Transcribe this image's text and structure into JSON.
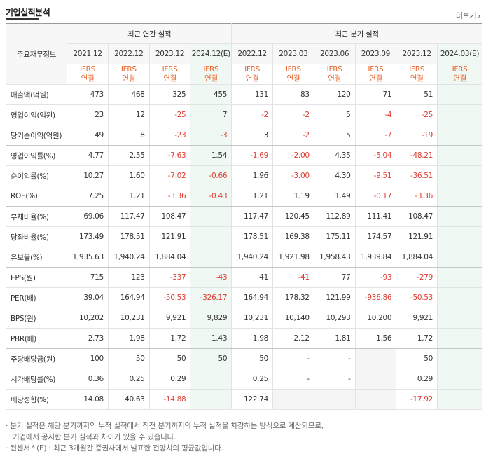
{
  "header": {
    "title": "기업실적분석",
    "more_label": "더보기"
  },
  "table": {
    "row_header_label": "주요재무정보",
    "annual_group": "최근 연간 실적",
    "quarter_group": "최근 분기 실적",
    "annual_dates": [
      "2021.12",
      "2022.12",
      "2023.12",
      "2024.12(E)"
    ],
    "quarter_dates": [
      "2022.12",
      "2023.03",
      "2023.06",
      "2023.09",
      "2023.12",
      "2024.03(E)"
    ],
    "ifrs": "IFRS",
    "basis": "연결",
    "rows": [
      {
        "label": "매출액(억원)",
        "values": [
          "473",
          "468",
          "325",
          "455",
          "131",
          "83",
          "120",
          "71",
          "51",
          ""
        ]
      },
      {
        "label": "영업이익(억원)",
        "values": [
          "23",
          "12",
          "-25",
          "7",
          "-2",
          "-2",
          "5",
          "-4",
          "-25",
          ""
        ]
      },
      {
        "label": "당기순이익(억원)",
        "values": [
          "49",
          "8",
          "-23",
          "-3",
          "3",
          "-2",
          "5",
          "-7",
          "-19",
          ""
        ]
      },
      {
        "label": "영업이익률(%)",
        "values": [
          "4.77",
          "2.55",
          "-7.63",
          "1.54",
          "-1.69",
          "-2.00",
          "4.35",
          "-5.04",
          "-48.21",
          ""
        ]
      },
      {
        "label": "순이익률(%)",
        "values": [
          "10.27",
          "1.60",
          "-7.02",
          "-0.66",
          "1.96",
          "-3.00",
          "4.30",
          "-9.51",
          "-36.51",
          ""
        ]
      },
      {
        "label": "ROE(%)",
        "values": [
          "7.25",
          "1.21",
          "-3.36",
          "-0.43",
          "1.21",
          "1.19",
          "1.49",
          "-0.17",
          "-3.36",
          ""
        ]
      },
      {
        "label": "부채비율(%)",
        "values": [
          "69.06",
          "117.47",
          "108.47",
          "",
          "117.47",
          "120.45",
          "112.89",
          "111.41",
          "108.47",
          ""
        ]
      },
      {
        "label": "당좌비율(%)",
        "values": [
          "173.49",
          "178.51",
          "121.91",
          "",
          "178.51",
          "169.38",
          "175.11",
          "174.57",
          "121.91",
          ""
        ]
      },
      {
        "label": "유보율(%)",
        "values": [
          "1,935.63",
          "1,940.24",
          "1,884.04",
          "",
          "1,940.24",
          "1,921.98",
          "1,958.43",
          "1,939.84",
          "1,884.04",
          ""
        ]
      },
      {
        "label": "EPS(원)",
        "values": [
          "715",
          "123",
          "-337",
          "-43",
          "41",
          "-41",
          "77",
          "-93",
          "-279",
          ""
        ]
      },
      {
        "label": "PER(배)",
        "values": [
          "39.04",
          "164.94",
          "-50.53",
          "-326.17",
          "164.94",
          "178.32",
          "121.99",
          "-936.86",
          "-50.53",
          ""
        ]
      },
      {
        "label": "BPS(원)",
        "values": [
          "10,202",
          "10,231",
          "9,921",
          "9,829",
          "10,231",
          "10,140",
          "10,293",
          "10,200",
          "9,921",
          ""
        ]
      },
      {
        "label": "PBR(배)",
        "values": [
          "2.73",
          "1.98",
          "1.72",
          "1.43",
          "1.98",
          "2.12",
          "1.81",
          "1.56",
          "1.72",
          ""
        ]
      },
      {
        "label": "주당배당금(원)",
        "values": [
          "100",
          "50",
          "50",
          "50",
          "50",
          "-",
          "-",
          "",
          "50",
          ""
        ]
      },
      {
        "label": "시가배당률(%)",
        "values": [
          "0.36",
          "0.25",
          "0.29",
          "",
          "0.25",
          "-",
          "-",
          "",
          "0.29",
          ""
        ]
      },
      {
        "label": "배당성향(%)",
        "values": [
          "14.08",
          "40.63",
          "-14.88",
          "",
          "122.74",
          "",
          "",
          "",
          "-17.92",
          ""
        ]
      }
    ]
  },
  "notes": [
    "· 분기 실적은 해당 분기까지의 누적 실적에서 직전 분기까지의 누적 실적을 차감하는 방식으로 계산되므로,",
    "기업에서 공시한 분기 실적과 차이가 있을 수 있습니다.",
    "· 컨센서스(E) : 최근 3개월간 증권사에서 발표한 전망치의 평균값입니다."
  ],
  "colors": {
    "negative": "#e03c31",
    "ifrs": "#e8652e",
    "estimate_bg": "#f0f8f3"
  }
}
